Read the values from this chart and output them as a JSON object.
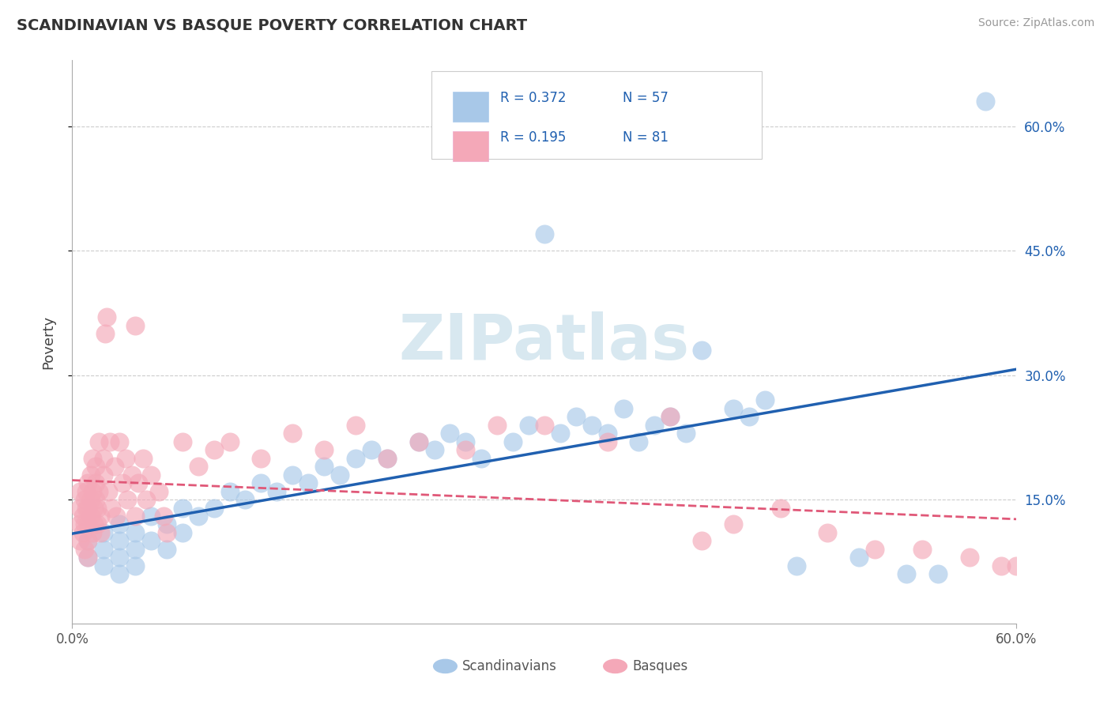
{
  "title": "SCANDINAVIAN VS BASQUE POVERTY CORRELATION CHART",
  "source": "Source: ZipAtlas.com",
  "ylabel": "Poverty",
  "legend_blue_r": "R = 0.372",
  "legend_blue_n": "N = 57",
  "legend_pink_r": "R = 0.195",
  "legend_pink_n": "N = 81",
  "xlim": [
    0.0,
    0.6
  ],
  "ylim": [
    0.0,
    0.68
  ],
  "yticks": [
    0.15,
    0.3,
    0.45,
    0.6
  ],
  "ytick_labels": [
    "15.0%",
    "30.0%",
    "45.0%",
    "60.0%"
  ],
  "blue_color": "#a8c8e8",
  "pink_color": "#f4a8b8",
  "blue_line_color": "#2060b0",
  "pink_line_color": "#e05878",
  "grid_color": "#cccccc",
  "title_color": "#333333",
  "source_color": "#999999",
  "watermark_color": "#d8e8f0",
  "watermark_text": "ZIPatlas",
  "legend_text_color": "#2060b0",
  "background": "#ffffff",
  "sc_x": [
    0.01,
    0.01,
    0.02,
    0.02,
    0.02,
    0.03,
    0.03,
    0.03,
    0.03,
    0.04,
    0.04,
    0.04,
    0.05,
    0.05,
    0.06,
    0.06,
    0.07,
    0.07,
    0.08,
    0.09,
    0.1,
    0.11,
    0.12,
    0.13,
    0.14,
    0.15,
    0.16,
    0.17,
    0.18,
    0.19,
    0.2,
    0.22,
    0.23,
    0.24,
    0.25,
    0.26,
    0.28,
    0.29,
    0.3,
    0.31,
    0.32,
    0.33,
    0.34,
    0.35,
    0.36,
    0.37,
    0.38,
    0.39,
    0.4,
    0.42,
    0.43,
    0.44,
    0.46,
    0.5,
    0.53,
    0.55,
    0.58
  ],
  "sc_y": [
    0.1,
    0.08,
    0.09,
    0.11,
    0.07,
    0.1,
    0.08,
    0.12,
    0.06,
    0.11,
    0.09,
    0.07,
    0.13,
    0.1,
    0.12,
    0.09,
    0.14,
    0.11,
    0.13,
    0.14,
    0.16,
    0.15,
    0.17,
    0.16,
    0.18,
    0.17,
    0.19,
    0.18,
    0.2,
    0.21,
    0.2,
    0.22,
    0.21,
    0.23,
    0.22,
    0.2,
    0.22,
    0.24,
    0.47,
    0.23,
    0.25,
    0.24,
    0.23,
    0.26,
    0.22,
    0.24,
    0.25,
    0.23,
    0.33,
    0.26,
    0.25,
    0.27,
    0.07,
    0.08,
    0.06,
    0.06,
    0.63
  ],
  "bq_x": [
    0.005,
    0.005,
    0.005,
    0.005,
    0.007,
    0.007,
    0.008,
    0.008,
    0.008,
    0.009,
    0.009,
    0.01,
    0.01,
    0.01,
    0.01,
    0.01,
    0.012,
    0.012,
    0.012,
    0.013,
    0.013,
    0.013,
    0.014,
    0.014,
    0.015,
    0.015,
    0.015,
    0.016,
    0.016,
    0.017,
    0.017,
    0.018,
    0.018,
    0.02,
    0.02,
    0.021,
    0.022,
    0.023,
    0.024,
    0.025,
    0.027,
    0.028,
    0.03,
    0.032,
    0.034,
    0.035,
    0.038,
    0.04,
    0.04,
    0.042,
    0.045,
    0.047,
    0.05,
    0.055,
    0.058,
    0.06,
    0.07,
    0.08,
    0.09,
    0.1,
    0.12,
    0.14,
    0.16,
    0.18,
    0.2,
    0.22,
    0.25,
    0.27,
    0.3,
    0.34,
    0.38,
    0.4,
    0.42,
    0.45,
    0.48,
    0.51,
    0.54,
    0.57,
    0.59,
    0.6,
    0.61
  ],
  "bq_y": [
    0.12,
    0.14,
    0.1,
    0.16,
    0.13,
    0.11,
    0.15,
    0.12,
    0.09,
    0.16,
    0.14,
    0.17,
    0.12,
    0.14,
    0.1,
    0.08,
    0.15,
    0.13,
    0.18,
    0.16,
    0.2,
    0.11,
    0.14,
    0.12,
    0.17,
    0.15,
    0.19,
    0.14,
    0.12,
    0.16,
    0.22,
    0.13,
    0.11,
    0.18,
    0.2,
    0.35,
    0.37,
    0.16,
    0.22,
    0.14,
    0.19,
    0.13,
    0.22,
    0.17,
    0.2,
    0.15,
    0.18,
    0.36,
    0.13,
    0.17,
    0.2,
    0.15,
    0.18,
    0.16,
    0.13,
    0.11,
    0.22,
    0.19,
    0.21,
    0.22,
    0.2,
    0.23,
    0.21,
    0.24,
    0.2,
    0.22,
    0.21,
    0.24,
    0.24,
    0.22,
    0.25,
    0.1,
    0.12,
    0.14,
    0.11,
    0.09,
    0.09,
    0.08,
    0.07,
    0.07,
    0.08
  ]
}
